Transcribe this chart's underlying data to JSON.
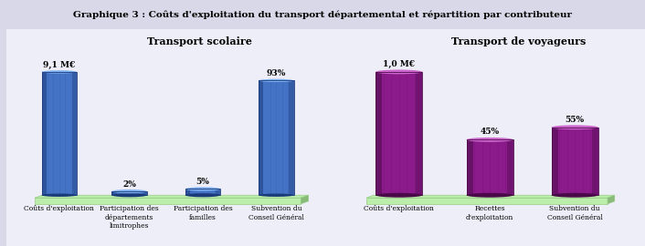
{
  "title": "Graphique 3 : Coûts d'exploitation du transport départemental et répartition par contributeur",
  "outer_bg": "#D8D8E8",
  "inner_bg": "#EEEEF8",
  "platform_color": "#BBEEAA",
  "platform_edge_color": "#99CC88",
  "platform_side_color": "#88BB77",
  "left_title": "Transport scolaire",
  "right_title": "Transport de voyageurs",
  "left_bars": [
    {
      "label": "Coûts d'exploitation",
      "value": 1.0,
      "pct": "9,1 M€",
      "color_body": "#4472C4",
      "color_top": "#7EB0F0",
      "color_dark": "#1A3A7A",
      "color_shade": "#2A52A0"
    },
    {
      "label": "Participation des\ndépartements\nlimitrophes",
      "value": 0.02,
      "pct": "2%",
      "color_body": "#4472C4",
      "color_top": "#7EB0F0",
      "color_dark": "#1A3A7A",
      "color_shade": "#2A52A0"
    },
    {
      "label": "Participation des\nfamilles",
      "value": 0.05,
      "pct": "5%",
      "color_body": "#4472C4",
      "color_top": "#7EB0F0",
      "color_dark": "#1A3A7A",
      "color_shade": "#2A52A0"
    },
    {
      "label": "Subvention du\nConseil Général",
      "value": 0.93,
      "pct": "93%",
      "color_body": "#4472C4",
      "color_top": "#7EB0F0",
      "color_dark": "#1A3A7A",
      "color_shade": "#2A52A0"
    }
  ],
  "right_bars": [
    {
      "label": "Coûts d'exploitation",
      "value": 1.0,
      "pct": "1,0 M€",
      "color_body": "#8B1A8B",
      "color_top": "#CC66CC",
      "color_dark": "#4A0A4A",
      "color_shade": "#6A106A"
    },
    {
      "label": "Recettes\nd'exploitation",
      "value": 0.45,
      "pct": "45%",
      "color_body": "#8B1A8B",
      "color_top": "#CC66CC",
      "color_dark": "#4A0A4A",
      "color_shade": "#6A106A"
    },
    {
      "label": "Subvention du\nConseil Général",
      "value": 0.55,
      "pct": "55%",
      "color_body": "#8B1A8B",
      "color_top": "#CC66CC",
      "color_dark": "#4A0A4A",
      "color_shade": "#6A106A"
    }
  ]
}
